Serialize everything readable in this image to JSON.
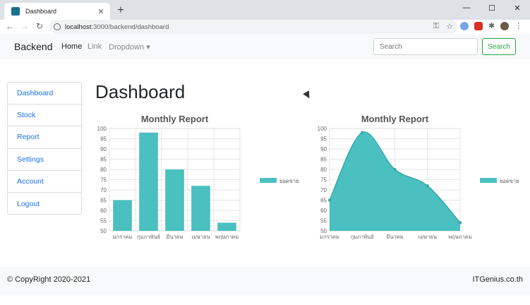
{
  "browser": {
    "tab_title": "Dashboard",
    "url_host": "localhost",
    "url_path": ":3000/backend/dashboard",
    "new_tab": "+",
    "close": "✕"
  },
  "navbar": {
    "brand": "Backend",
    "links": [
      "Home",
      "Link",
      "Dropdown ▾"
    ],
    "search_placeholder": "Search",
    "search_button": "Search"
  },
  "sidebar": {
    "items": [
      {
        "label": "Dashboard"
      },
      {
        "label": "Stock"
      },
      {
        "label": "Report"
      },
      {
        "label": "Settings"
      },
      {
        "label": "Account"
      },
      {
        "label": "Logout"
      }
    ]
  },
  "main": {
    "title": "Dashboard"
  },
  "chart_data": [
    {
      "type": "bar",
      "title": "Monthly Report",
      "categories": [
        "มกราคม",
        "กุมภาพันธ์",
        "มีนาคม",
        "เมษายน",
        "พฤษภาคม"
      ],
      "series": [
        {
          "name": "ยอดขาย",
          "values": [
            65,
            98,
            80,
            72,
            54
          ]
        }
      ],
      "ylim": [
        50,
        100
      ],
      "yticks": [
        50,
        55,
        60,
        65,
        70,
        75,
        80,
        85,
        90,
        95,
        100
      ],
      "grid": true,
      "legend": "right",
      "color": "#4bc0c0"
    },
    {
      "type": "area",
      "title": "Monthly Report",
      "categories": [
        "มกราคม",
        "กุมภาพันธ์",
        "มีนาคม",
        "เมษายน",
        "พฤษภาคม"
      ],
      "series": [
        {
          "name": "ยอดขาย",
          "values": [
            65,
            98,
            80,
            72,
            54
          ]
        }
      ],
      "ylim": [
        50,
        100
      ],
      "yticks": [
        50,
        55,
        60,
        65,
        70,
        75,
        80,
        85,
        90,
        95,
        100
      ],
      "grid": true,
      "legend": "right",
      "color": "#4bc0c0"
    }
  ],
  "footer": {
    "copyright": "© CopyRight 2020-2021",
    "brand": "ITGenius.co.th"
  },
  "colors": {
    "accent": "#4bc0c0",
    "link": "#1a73e8",
    "search_btn": "#28a745"
  }
}
